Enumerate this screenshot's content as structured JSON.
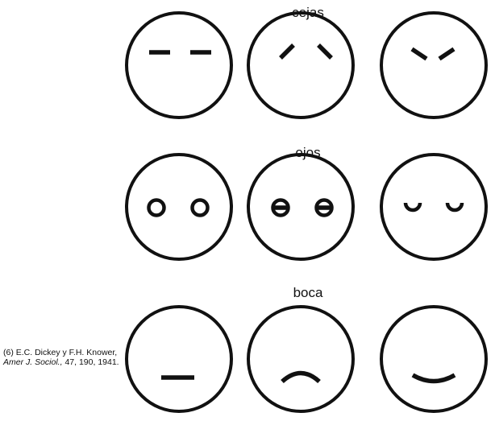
{
  "rows": [
    {
      "label": "cejas",
      "faces": [
        {
          "feature": "eyebrows",
          "shape": "flat"
        },
        {
          "feature": "eyebrows",
          "shape": "raised-inner-low-outer"
        },
        {
          "feature": "eyebrows",
          "shape": "frown-v"
        }
      ]
    },
    {
      "label": "ojos",
      "faces": [
        {
          "feature": "eyes",
          "shape": "open-rings"
        },
        {
          "feature": "eyes",
          "shape": "rings-with-bar"
        },
        {
          "feature": "eyes",
          "shape": "cups"
        }
      ]
    },
    {
      "label": "boca",
      "faces": [
        {
          "feature": "mouth",
          "shape": "straight"
        },
        {
          "feature": "mouth",
          "shape": "frown"
        },
        {
          "feature": "mouth",
          "shape": "smile"
        }
      ]
    }
  ],
  "citation": {
    "prefix": "(6) E.C. Dickey y F.H. Knower, ",
    "journal": "Amer J. Sociol.,",
    "suffix": " 47, 190, 1941."
  },
  "colors": {
    "ink": "#111111",
    "background": "#ffffff"
  }
}
